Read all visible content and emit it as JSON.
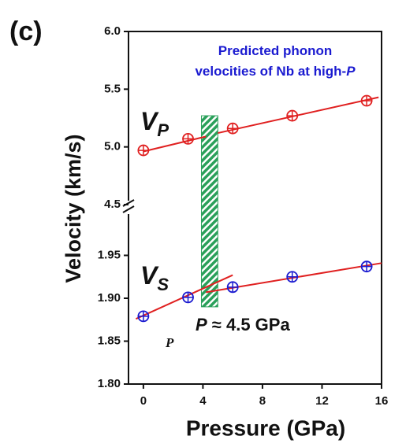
{
  "chart_data": [
    {
      "type": "line",
      "panel_label": "(c)",
      "y_label": "Velocity (km/s)",
      "annotation": [
        [
          "Predicted phonon"
        ],
        [
          "velocities of Nb at high-",
          "P"
        ]
      ],
      "xlim": [
        -1,
        16
      ],
      "ylim": [
        4.5,
        6.0
      ],
      "yticks": [
        {
          "value": 4.5,
          "label": "4.5"
        },
        {
          "value": 5.0,
          "label": "5.0"
        },
        {
          "value": 5.5,
          "label": "5.5"
        },
        {
          "value": 6.0,
          "label": "6.0"
        }
      ],
      "series": [
        {
          "name": "V",
          "subscript": "P",
          "color": "#e02020",
          "x": [
            0,
            3,
            6,
            10,
            15
          ],
          "values": [
            4.97,
            5.07,
            5.16,
            5.27,
            5.4
          ]
        }
      ],
      "fit_lines": [
        {
          "color": "#e02020",
          "x": [
            0,
            4.2
          ],
          "values": [
            4.96,
            5.09
          ]
        },
        {
          "color": "#e02020",
          "x": [
            5,
            15.8
          ],
          "values": [
            5.12,
            5.43
          ]
        }
      ],
      "band_top": 5.27
    },
    {
      "type": "line",
      "x_label": "Pressure (GPa)",
      "annotations": [
        [
          "P",
          " ≈ 4.5 GPa"
        ],
        "P"
      ],
      "xlim": [
        -1,
        16
      ],
      "ylim": [
        1.8,
        2.0
      ],
      "xticks": [
        0,
        4,
        8,
        12,
        16
      ],
      "yticks": [
        {
          "value": 1.8,
          "label": "1.80"
        },
        {
          "value": 1.85,
          "label": "1.85"
        },
        {
          "value": 1.9,
          "label": "1.90"
        },
        {
          "value": 1.95,
          "label": "1.95"
        }
      ],
      "series": [
        {
          "name": "V",
          "subscript": "S",
          "color": "#1a1ad0",
          "x": [
            0,
            3,
            6,
            10,
            15
          ],
          "values": [
            1.879,
            1.901,
            1.913,
            1.925,
            1.937
          ]
        }
      ],
      "fit_lines": [
        {
          "color": "#e02020",
          "x": [
            -0.5,
            6
          ],
          "values": [
            1.876,
            1.927
          ]
        },
        {
          "color": "#e02020",
          "x": [
            4.2,
            16
          ],
          "values": [
            1.907,
            1.941
          ]
        }
      ],
      "band": {
        "x": [
          3.9,
          5.0
        ],
        "bottom": 1.89,
        "color": "#2aa05a"
      }
    }
  ]
}
